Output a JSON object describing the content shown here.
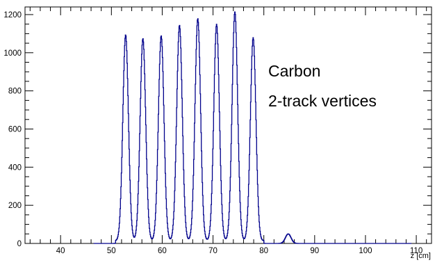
{
  "chart_data": {
    "type": "line",
    "style": "step-histogram",
    "xlabel": "z [cm]",
    "ylabel": "",
    "xlim": [
      33,
      113
    ],
    "ylim": [
      0,
      1240
    ],
    "xticks": [
      40,
      50,
      60,
      70,
      80,
      90,
      100,
      110
    ],
    "yticks": [
      0,
      200,
      400,
      600,
      800,
      1000,
      1200
    ],
    "grid": false,
    "line_color": "#00008b",
    "annotation": [
      "Carbon",
      "2-track vertices"
    ],
    "peaks": [
      {
        "z": 52.8,
        "counts": 1080
      },
      {
        "z": 56.2,
        "counts": 1060
      },
      {
        "z": 59.8,
        "counts": 1075
      },
      {
        "z": 63.4,
        "counts": 1130
      },
      {
        "z": 67.0,
        "counts": 1165
      },
      {
        "z": 70.7,
        "counts": 1135
      },
      {
        "z": 74.3,
        "counts": 1200
      },
      {
        "z": 77.9,
        "counts": 1065
      },
      {
        "z": 84.8,
        "counts": 50
      }
    ]
  }
}
